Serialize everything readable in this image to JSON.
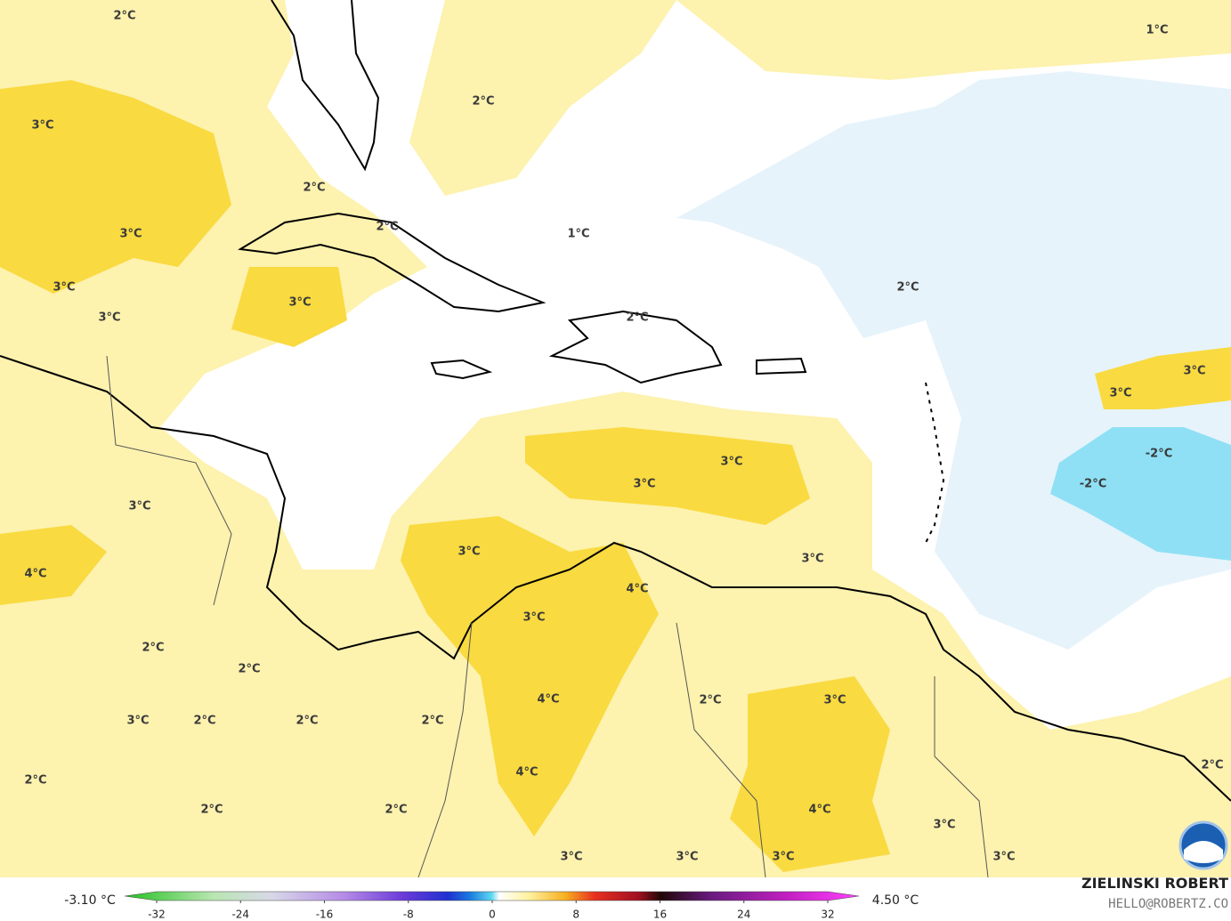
{
  "map": {
    "contour_labels": [
      "2°C",
      "1°C",
      "3°C",
      "2°C",
      "2°C",
      "3°C",
      "2°C",
      "1°C",
      "3°C",
      "3°C",
      "3°C",
      "2°C",
      "2°C",
      "3°C",
      "3°C",
      "3°C",
      "3°C",
      "-2°C",
      "-2°C",
      "3°C",
      "3°C",
      "3°C",
      "4°C",
      "4°C",
      "3°C",
      "2°C",
      "2°C",
      "2°C",
      "3°C",
      "4°C",
      "3°C",
      "2°C",
      "2°C",
      "2°C",
      "4°C",
      "2°C",
      "2°C",
      "2°C",
      "2°C",
      "4°C",
      "3°C",
      "3°C",
      "3°C",
      "3°C",
      "3°C"
    ],
    "colorbar": {
      "min_label": "-3.10 °C",
      "max_label": "4.50 °C",
      "ticks": [
        -32,
        -24,
        -16,
        -8,
        0,
        8,
        16,
        24,
        32
      ]
    },
    "credit": {
      "name": "ZIELINSKI ROBERT",
      "contact": "HELLO@ROBERTZ.CO"
    }
  }
}
